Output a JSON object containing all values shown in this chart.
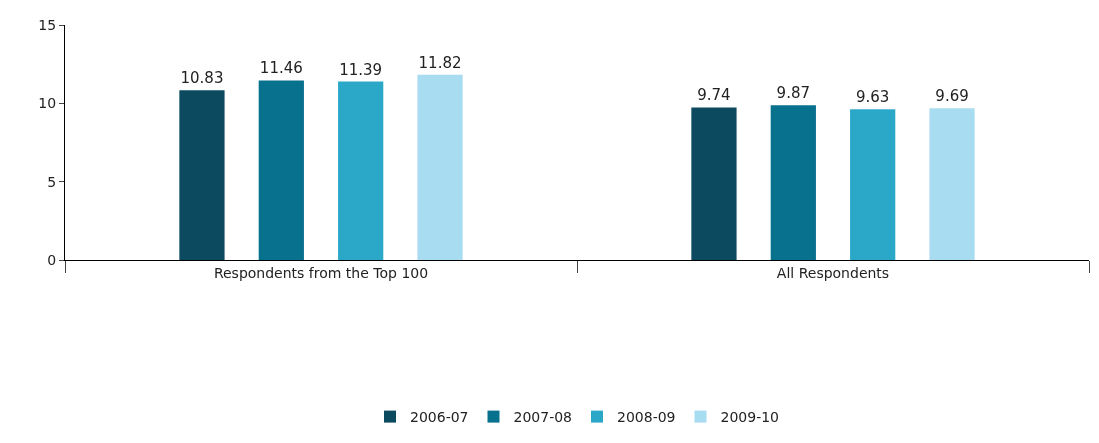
{
  "chart_data": {
    "type": "bar",
    "categories": [
      "Respondents from the Top 100",
      "All Respondents"
    ],
    "series": [
      {
        "name": "2006-07",
        "color": "#0b4a5f",
        "values": [
          10.83,
          9.74
        ]
      },
      {
        "name": "2007-08",
        "color": "#08718e",
        "values": [
          11.46,
          9.87
        ]
      },
      {
        "name": "2008-09",
        "color": "#2ba8c8",
        "values": [
          11.39,
          9.63
        ]
      },
      {
        "name": "2009-10",
        "color": "#a8dcf0",
        "values": [
          11.82,
          9.69
        ]
      }
    ],
    "ylim": [
      0,
      15
    ],
    "yticks": [
      0,
      5,
      10,
      15
    ],
    "grid": false,
    "legend": "bottom",
    "data_labels": true
  }
}
